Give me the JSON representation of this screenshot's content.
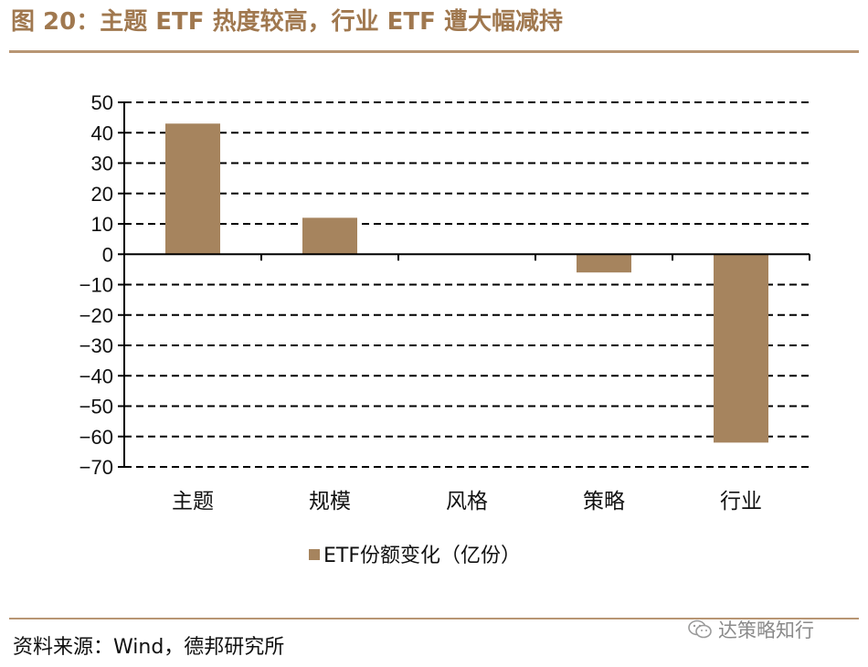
{
  "figure_title": "图 20：主题 ETF 热度较高，行业 ETF 遭大幅减持",
  "source_text": "资料来源：Wind，德邦研究所",
  "watermark_text": "达策略知行",
  "watermark_icon": "wechat-icon",
  "colors": {
    "bar": "#a6845e",
    "accent": "#a0784f",
    "rule": "#b89674"
  },
  "chart_data": {
    "type": "bar",
    "categories": [
      "主题",
      "规模",
      "风格",
      "策略",
      "行业"
    ],
    "series": [
      {
        "name": "ETF份额变化（亿份）",
        "values": [
          43,
          12,
          0,
          -6,
          -62
        ]
      }
    ],
    "ylim": [
      -70,
      50
    ],
    "yticks": [
      50,
      40,
      30,
      20,
      10,
      0,
      -10,
      -20,
      -30,
      -40,
      -50,
      -60,
      -70
    ],
    "ytick_labels": [
      "50",
      "40",
      "30",
      "20",
      "10",
      "0",
      "−10",
      "−20",
      "−30",
      "−40",
      "−50",
      "−60",
      "−70"
    ],
    "grid": "dashed-horizontal",
    "legend": "bottom-center",
    "title": "",
    "xlabel": "",
    "ylabel": ""
  }
}
